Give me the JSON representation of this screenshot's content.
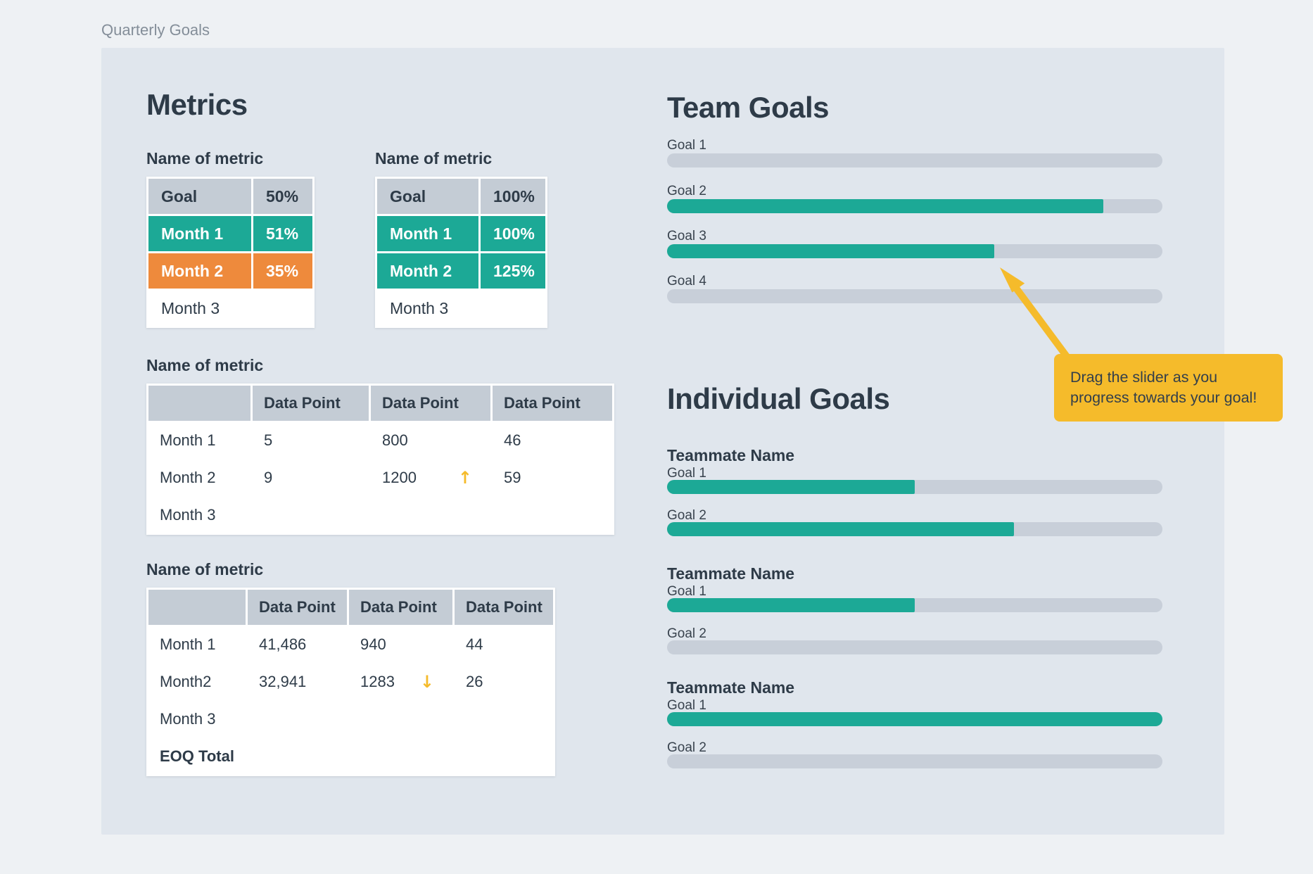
{
  "page": {
    "title": "Quarterly Goals"
  },
  "colors": {
    "teal": "#1CA996",
    "orange": "#EE8A3C",
    "yellow": "#F5BB2B",
    "header": "#C4CCD5",
    "track": "#C8CFD9",
    "navy": "#2E3B48"
  },
  "metrics": {
    "heading": "Metrics",
    "small_tables": [
      {
        "label": "Name of metric",
        "header": {
          "name": "Goal",
          "value": "50%"
        },
        "rows": [
          {
            "name": "Month 1",
            "value": "51%",
            "status": "hit"
          },
          {
            "name": "Month 2",
            "value": "35%",
            "status": "missed"
          },
          {
            "name": "Month 3",
            "value": "",
            "status": "pending"
          }
        ]
      },
      {
        "label": "Name of metric",
        "header": {
          "name": "Goal",
          "value": "100%"
        },
        "rows": [
          {
            "name": "Month 1",
            "value": "100%",
            "status": "hit"
          },
          {
            "name": "Month 2",
            "value": "125%",
            "status": "hit"
          },
          {
            "name": "Month 3",
            "value": "",
            "status": "pending"
          }
        ]
      }
    ],
    "data_tables": [
      {
        "label": "Name of metric",
        "columns": [
          "",
          "Data Point",
          "Data Point",
          "Data Point"
        ],
        "rows": [
          {
            "name": "Month 1",
            "cells": [
              {
                "value": "5"
              },
              {
                "value": "800"
              },
              {
                "value": "46"
              }
            ]
          },
          {
            "name": "Month 2",
            "cells": [
              {
                "value": "9"
              },
              {
                "value": "1200",
                "trend": "↑"
              },
              {
                "value": "59"
              }
            ]
          },
          {
            "name": "Month 3",
            "cells": [
              {
                "value": ""
              },
              {
                "value": ""
              },
              {
                "value": ""
              }
            ]
          }
        ]
      },
      {
        "label": "Name of metric",
        "columns": [
          "",
          "Data Point",
          "Data Point",
          "Data Point"
        ],
        "rows": [
          {
            "name": "Month 1",
            "cells": [
              {
                "value": "41,486"
              },
              {
                "value": "940"
              },
              {
                "value": "44"
              }
            ]
          },
          {
            "name": "Month2",
            "cells": [
              {
                "value": "32,941"
              },
              {
                "value": "1283",
                "trend": "↓"
              },
              {
                "value": "26"
              }
            ]
          },
          {
            "name": "Month 3",
            "cells": [
              {
                "value": ""
              },
              {
                "value": ""
              },
              {
                "value": ""
              }
            ]
          },
          {
            "name": "EOQ Total",
            "bold": true,
            "cells": [
              {
                "value": ""
              },
              {
                "value": ""
              },
              {
                "value": ""
              }
            ]
          }
        ]
      }
    ]
  },
  "team_goals": {
    "heading": "Team Goals",
    "goals": [
      {
        "label": "Goal 1",
        "percent": 0
      },
      {
        "label": "Goal 2",
        "percent": 88
      },
      {
        "label": "Goal 3",
        "percent": 66
      },
      {
        "label": "Goal 4",
        "percent": 0
      }
    ]
  },
  "individual_goals": {
    "heading": "Individual Goals",
    "teammates": [
      {
        "name": "Teammate Name",
        "goals": [
          {
            "label": "Goal 1",
            "percent": 50
          },
          {
            "label": "Goal 2",
            "percent": 70
          }
        ]
      },
      {
        "name": "Teammate Name",
        "goals": [
          {
            "label": "Goal 1",
            "percent": 50
          },
          {
            "label": "Goal 2",
            "percent": 0
          }
        ]
      },
      {
        "name": "Teammate Name",
        "goals": [
          {
            "label": "Goal 1",
            "percent": 100
          },
          {
            "label": "Goal 2",
            "percent": 0
          }
        ]
      }
    ]
  },
  "tooltip": {
    "lines": [
      "Drag the slider as you",
      "progress towards your goal!"
    ],
    "text": "Drag the slider as you progress towards your goal!"
  }
}
